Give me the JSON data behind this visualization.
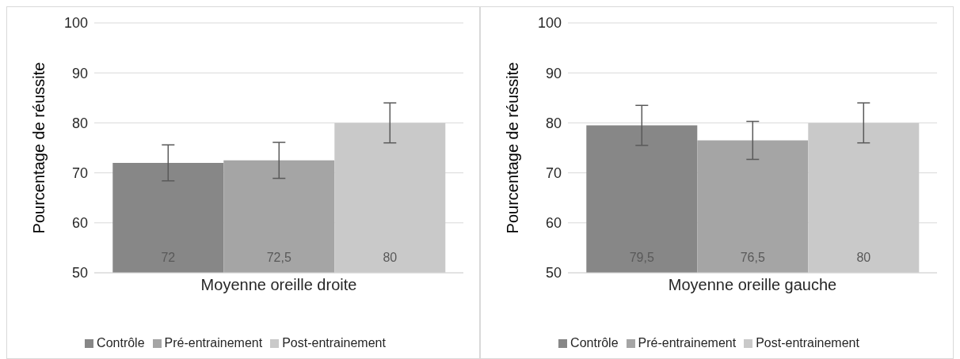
{
  "chart_data": [
    {
      "type": "bar",
      "ylabel": "Pourcentage de réussite",
      "categories": [
        "Moyenne oreille droite"
      ],
      "ylim": [
        50,
        100
      ],
      "yticks": [
        50,
        60,
        70,
        80,
        90,
        100
      ],
      "grid": "y",
      "legend": "bottom",
      "series": [
        {
          "name": "Contrôle",
          "color": "#878787",
          "values": [
            72
          ],
          "errors": [
            3.6
          ],
          "value_labels": [
            "72"
          ]
        },
        {
          "name": "Pré-entrainement",
          "color": "#a5a5a5",
          "values": [
            72.5
          ],
          "errors": [
            3.6
          ],
          "value_labels": [
            "72,5"
          ]
        },
        {
          "name": "Post-entrainement",
          "color": "#c9c9c9",
          "values": [
            80
          ],
          "errors": [
            4
          ],
          "value_labels": [
            "80"
          ]
        }
      ]
    },
    {
      "type": "bar",
      "ylabel": "Pourcentage de réussite",
      "categories": [
        "Moyenne oreille gauche"
      ],
      "ylim": [
        50,
        100
      ],
      "yticks": [
        50,
        60,
        70,
        80,
        90,
        100
      ],
      "grid": "y",
      "legend": "bottom",
      "series": [
        {
          "name": "Contrôle",
          "color": "#878787",
          "values": [
            79.5
          ],
          "errors": [
            4
          ],
          "value_labels": [
            "79,5"
          ]
        },
        {
          "name": "Pré-entrainement",
          "color": "#a5a5a5",
          "values": [
            76.5
          ],
          "errors": [
            3.8
          ],
          "value_labels": [
            "76,5"
          ]
        },
        {
          "name": "Post-entrainement",
          "color": "#c9c9c9",
          "values": [
            80
          ],
          "errors": [
            4
          ],
          "value_labels": [
            "80"
          ]
        }
      ]
    }
  ]
}
